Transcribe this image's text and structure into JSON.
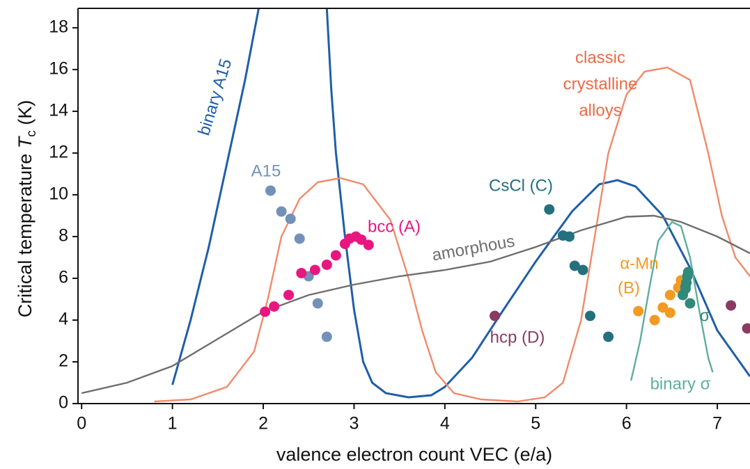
{
  "chart_data": {
    "type": "line",
    "x_label": "valence electron count VEC (e/a)",
    "y_label": {
      "text": "Critical temperature",
      "symbol": "T",
      "subscript": "c",
      "unit": "(K)"
    },
    "xlim": [
      -0.04,
      7.36
    ],
    "ylim": [
      0,
      18.93
    ],
    "xticks": [
      0,
      1,
      2,
      3,
      4,
      5,
      6,
      7
    ],
    "yticks": [
      0,
      2,
      4,
      6,
      8,
      10,
      12,
      14,
      16,
      18
    ],
    "curves": [
      {
        "color": "#1f5ea8",
        "x": [
          1.0,
          1.2,
          1.4,
          1.6,
          1.8,
          1.95,
          null,
          2.7,
          2.75,
          2.8,
          2.9,
          3.0,
          3.1,
          3.2,
          3.35,
          3.6,
          3.85,
          4.0,
          4.3,
          4.6,
          5.0,
          5.4,
          5.7,
          5.9,
          6.1,
          6.4,
          6.7,
          7.0,
          7.36
        ],
        "y": [
          0.9,
          4.0,
          7.5,
          11.5,
          15.5,
          18.93,
          null,
          18.93,
          15.0,
          12.0,
          8.0,
          4.5,
          2.0,
          1.0,
          0.5,
          0.3,
          0.4,
          0.8,
          2.2,
          4.2,
          6.8,
          9.2,
          10.5,
          10.7,
          10.4,
          9.0,
          6.5,
          3.5,
          1.3
        ]
      },
      {
        "color": "#f08a6a",
        "x": [
          0.8,
          1.2,
          1.6,
          1.9,
          2.05,
          2.2,
          2.4,
          2.6,
          2.85,
          3.1,
          3.4,
          3.6,
          3.75,
          3.9,
          4.1,
          4.4,
          4.8,
          5.1,
          5.3,
          5.5,
          5.65,
          5.8,
          6.0,
          6.2,
          6.45,
          6.7,
          6.9,
          7.05,
          7.2,
          7.36
        ],
        "y": [
          0.1,
          0.2,
          0.8,
          2.5,
          5.0,
          8.0,
          9.8,
          10.6,
          10.8,
          10.5,
          8.8,
          6.0,
          3.5,
          1.5,
          0.5,
          0.2,
          0.1,
          0.3,
          1.0,
          4.0,
          8.0,
          12.0,
          14.8,
          15.9,
          16.1,
          15.5,
          12.0,
          9.0,
          7.0,
          6.1
        ]
      },
      {
        "color": "#6e6e6e",
        "x": [
          0,
          0.5,
          1,
          1.5,
          2,
          2.5,
          3,
          3.5,
          4,
          4.5,
          5,
          5.5,
          6,
          6.3,
          6.6,
          7,
          7.36
        ],
        "y": [
          0.5,
          1.0,
          1.8,
          3.1,
          4.4,
          5.2,
          5.7,
          6.1,
          6.4,
          6.8,
          7.5,
          8.3,
          8.95,
          9.0,
          8.7,
          8.0,
          7.2
        ]
      },
      {
        "color": "#5fae9c",
        "x": [
          6.05,
          6.15,
          6.25,
          6.35,
          6.5,
          6.6,
          6.7,
          6.8,
          6.9,
          6.95
        ],
        "y": [
          1.1,
          3.0,
          5.5,
          7.8,
          8.7,
          8.5,
          7.0,
          4.5,
          2.2,
          1.5
        ]
      }
    ],
    "points": [
      {
        "color": "#7391b8",
        "x": [
          2.08,
          2.2,
          2.3,
          2.4,
          2.5,
          2.6,
          2.7
        ],
        "y": [
          10.2,
          9.2,
          8.85,
          7.9,
          6.1,
          4.8,
          3.2
        ]
      },
      {
        "color": "#e8177f",
        "x": [
          2.02,
          2.12,
          2.28,
          2.42,
          2.57,
          2.7,
          2.8,
          2.9,
          2.95,
          3.02,
          3.08,
          3.16
        ],
        "y": [
          4.4,
          4.65,
          5.2,
          6.25,
          6.4,
          6.65,
          7.1,
          7.65,
          7.9,
          8.0,
          7.85,
          7.6
        ]
      },
      {
        "color": "#24707f",
        "x": [
          5.15,
          5.3,
          5.37,
          5.43,
          5.52,
          5.6,
          5.8
        ],
        "y": [
          9.3,
          8.05,
          8.0,
          6.6,
          6.4,
          4.2,
          3.2
        ]
      },
      {
        "color": "#f39a22",
        "x": [
          6.13,
          6.31,
          6.4,
          6.48,
          6.48,
          6.57,
          6.6
        ],
        "y": [
          4.43,
          4.0,
          4.6,
          4.35,
          5.2,
          5.55,
          5.9
        ]
      },
      {
        "color": "#2f8a78",
        "x": [
          6.62,
          6.65,
          6.66,
          6.67,
          6.68,
          6.65,
          6.7
        ],
        "y": [
          5.2,
          5.5,
          5.8,
          6.1,
          6.3,
          5.6,
          4.8
        ]
      },
      {
        "color": "#8b3a62",
        "x": [
          4.55,
          7.15,
          7.33
        ],
        "y": [
          4.2,
          4.7,
          3.6
        ]
      }
    ],
    "annotations": [
      {
        "text": "binary A15",
        "color": "#1f5ea8"
      },
      {
        "text": "A15",
        "color": "#7391b8"
      },
      {
        "text": "bcc (A)",
        "color": "#e8177f"
      },
      {
        "text": "amorphous",
        "color": "#6e6e6e"
      },
      {
        "text": "CsCl (C)",
        "color": "#24707f"
      },
      {
        "text": "classic",
        "color": "#ec6a44"
      },
      {
        "text": "crystalline",
        "color": "#ec6a44"
      },
      {
        "text": "alloys",
        "color": "#ec6a44"
      },
      {
        "text": "α-Mn",
        "color": "#f39a22"
      },
      {
        "text": "(B)",
        "color": "#f39a22"
      },
      {
        "text": "σ",
        "color": "#2f8a78"
      },
      {
        "text": "hcp (D)",
        "color": "#8b3a62"
      },
      {
        "text": "binary σ",
        "color": "#5fae9c"
      }
    ]
  }
}
